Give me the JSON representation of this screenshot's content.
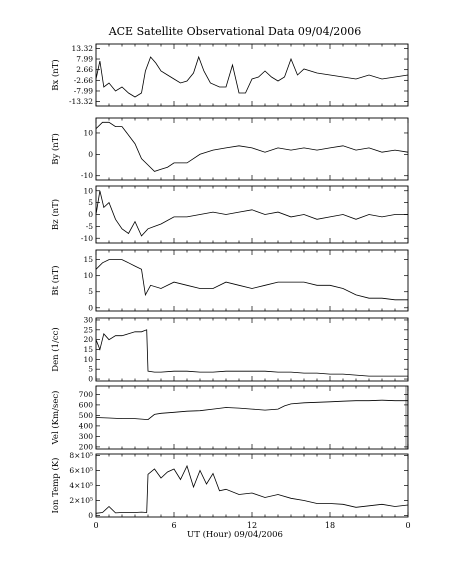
{
  "title": "ACE Satellite Observational Data   09/04/2006",
  "xlabel": "UT (Hour)   09/04/2006",
  "chart_data": {
    "type": "line",
    "title": "ACE Satellite Observational Data   09/04/2006",
    "xlabel": "UT (Hour)   09/04/2006",
    "x_ticks": [
      "0",
      "6",
      "12",
      "18",
      "0"
    ],
    "xlim": [
      0,
      24
    ],
    "panels": [
      {
        "ylabel": "Bx (nT)",
        "ylim": [
          -15.5,
          15.5
        ],
        "yticks": [
          {
            "v": 13.32,
            "t": "13.32"
          },
          {
            "v": 7.99,
            "t": "7.99"
          },
          {
            "v": 2.66,
            "t": "2.66"
          },
          {
            "v": -2.66,
            "t": "-2.66"
          },
          {
            "v": -7.99,
            "t": "-7.99"
          },
          {
            "v": -13.32,
            "t": "-13.32"
          }
        ],
        "shade": [],
        "series": [
          {
            "x": [
              0,
              0.3,
              0.6,
              1.0,
              1.5,
              2.0,
              2.5,
              3.0,
              3.5,
              3.8,
              4.2,
              4.6,
              5.0,
              5.5,
              6.0,
              6.5,
              7.0,
              7.5,
              7.9,
              8.3,
              8.8,
              9.5,
              10.0,
              10.5,
              11.0,
              11.5,
              12.0,
              12.5,
              13.0,
              13.5,
              14.0,
              14.5,
              15.0,
              15.5,
              16.0,
              17.0,
              18.0,
              19.0,
              20.0,
              21.0,
              22.0,
              23.0,
              24.0
            ],
            "y": [
              -2,
              7,
              -6,
              -4,
              -8,
              -6,
              -9,
              -11,
              -9,
              2,
              9,
              6,
              2,
              0,
              -2,
              -4,
              -3,
              1,
              9,
              2,
              -4,
              -6,
              -6,
              5,
              -9,
              -9,
              -2,
              -1,
              2,
              -1,
              -3,
              -1,
              8,
              0,
              3,
              1,
              0,
              -1,
              -2,
              0,
              -2,
              -1,
              0
            ]
          }
        ]
      },
      {
        "ylabel": "By (nT)",
        "ylim": [
          -12,
          17
        ],
        "yticks": [
          {
            "v": 10,
            "t": "10"
          },
          {
            "v": 0,
            "t": "0"
          },
          {
            "v": -10,
            "t": "-10"
          }
        ],
        "shade": [],
        "series": [
          {
            "x": [
              0,
              0.5,
              1.0,
              1.5,
              2.0,
              2.5,
              3.0,
              3.5,
              4.0,
              4.5,
              5.0,
              5.5,
              6.0,
              7.0,
              8.0,
              9.0,
              10.0,
              11.0,
              12.0,
              13.0,
              14.0,
              15.0,
              16.0,
              17.0,
              18.0,
              19.0,
              20.0,
              21.0,
              22.0,
              23.0,
              24.0
            ],
            "y": [
              12,
              15,
              15,
              13,
              13,
              9,
              5,
              -2,
              -5,
              -8,
              -7,
              -6,
              -4,
              -4,
              0,
              2,
              3,
              4,
              3,
              1,
              3,
              2,
              3,
              2,
              3,
              4,
              2,
              3,
              1,
              2,
              1
            ]
          }
        ]
      },
      {
        "ylabel": "Bz (nT)",
        "ylim": [
          -12,
          12
        ],
        "yticks": [
          {
            "v": 10,
            "t": "10"
          },
          {
            "v": 5,
            "t": "5"
          },
          {
            "v": 0,
            "t": "0"
          },
          {
            "v": -5,
            "t": "-5"
          },
          {
            "v": -10,
            "t": "-10"
          }
        ],
        "shade": [],
        "series": [
          {
            "x": [
              0,
              0.3,
              0.6,
              1.0,
              1.5,
              2.0,
              2.5,
              3.0,
              3.5,
              4.0,
              4.5,
              5.0,
              6.0,
              7.0,
              8.0,
              9.0,
              10.0,
              11.0,
              12.0,
              13.0,
              14.0,
              15.0,
              16.0,
              17.0,
              18.0,
              19.0,
              20.0,
              21.0,
              22.0,
              23.0,
              24.0
            ],
            "y": [
              0,
              10,
              3,
              5,
              -2,
              -6,
              -8,
              -3,
              -9,
              -6,
              -5,
              -4,
              -1,
              -1,
              0,
              1,
              0,
              1,
              2,
              0,
              1,
              -1,
              0,
              -2,
              -1,
              0,
              -2,
              0,
              -1,
              0,
              0
            ]
          }
        ]
      },
      {
        "ylabel": "Bt (nT)",
        "ylim": [
          -1,
          18
        ],
        "yticks": [
          {
            "v": 15,
            "t": "15"
          },
          {
            "v": 10,
            "t": "10"
          },
          {
            "v": 5,
            "t": "5"
          },
          {
            "v": 0,
            "t": "0"
          }
        ],
        "shade": [],
        "series": [
          {
            "x": [
              0,
              0.5,
              1.0,
              1.5,
              2.0,
              2.5,
              3.0,
              3.5,
              3.8,
              4.2,
              5.0,
              6.0,
              7.0,
              8.0,
              9.0,
              10.0,
              11.0,
              12.0,
              13.0,
              14.0,
              15.0,
              16.0,
              17.0,
              18.0,
              19.0,
              20.0,
              21.0,
              22.0,
              23.0,
              24.0
            ],
            "y": [
              12,
              14,
              15,
              15,
              15,
              14,
              13,
              12,
              4,
              7,
              6,
              8,
              7,
              6,
              6,
              8,
              7,
              6,
              7,
              8,
              8,
              8,
              7,
              7,
              6,
              4,
              3,
              3,
              2.5,
              2.5
            ]
          }
        ]
      },
      {
        "ylabel": "Den (1/cc)",
        "ylim": [
          -1,
          31
        ],
        "yticks": [
          {
            "v": 30,
            "t": "30"
          },
          {
            "v": 25,
            "t": "25"
          },
          {
            "v": 20,
            "t": "20"
          },
          {
            "v": 15,
            "t": "15"
          },
          {
            "v": 10,
            "t": "10"
          },
          {
            "v": 5,
            "t": "5"
          },
          {
            "v": 0,
            "t": "0"
          }
        ],
        "shade": [],
        "series": [
          {
            "x": [
              0,
              0.3,
              0.6,
              1.0,
              1.5,
              2.0,
              2.5,
              3.0,
              3.5,
              3.9,
              4.0,
              4.5,
              5.0,
              6.0,
              7.0,
              8.0,
              9.0,
              10.0,
              11.0,
              12.0,
              13.0,
              14.0,
              15.0,
              16.0,
              17.0,
              18.0,
              19.0,
              20.0,
              21.0,
              22.0,
              23.0,
              24.0
            ],
            "y": [
              20,
              15,
              23,
              20,
              22,
              22,
              23,
              24,
              24,
              25,
              4,
              3.5,
              3.5,
              4,
              4,
              3.5,
              3.5,
              4,
              4,
              4,
              4,
              3.5,
              3.5,
              3,
              3,
              2.5,
              2.5,
              2,
              1.5,
              1.5,
              1.5,
              1.5
            ]
          }
        ]
      },
      {
        "ylabel": "Vel (Km/sec)",
        "ylim": [
          180,
          780
        ],
        "yticks": [
          {
            "v": 700,
            "t": "700"
          },
          {
            "v": 600,
            "t": "600"
          },
          {
            "v": 500,
            "t": "500"
          },
          {
            "v": 400,
            "t": "400"
          },
          {
            "v": 300,
            "t": "300"
          },
          {
            "v": 200,
            "t": "200"
          }
        ],
        "shade": [
          0,
          24
        ],
        "series": [
          {
            "x": [
              0,
              1.0,
              2.0,
              3.0,
              4.0,
              4.5,
              5.0,
              6.0,
              7.0,
              8.0,
              9.0,
              10.0,
              11.0,
              12.0,
              13.0,
              14.0,
              14.5,
              15.0,
              16.0,
              17.0,
              18.0,
              19.0,
              20.0,
              21.0,
              22.0,
              23.0,
              24.0
            ],
            "y": [
              480,
              475,
              470,
              470,
              460,
              510,
              520,
              530,
              540,
              545,
              560,
              575,
              570,
              560,
              550,
              560,
              590,
              610,
              620,
              625,
              630,
              635,
              640,
              640,
              645,
              640,
              640
            ]
          }
        ]
      },
      {
        "ylabel": "Ion Temp (K)",
        "ylim": [
          -20000,
          820000
        ],
        "yticks": [
          {
            "v": 800000,
            "t": "8×10⁵"
          },
          {
            "v": 600000,
            "t": "6×10⁵"
          },
          {
            "v": 400000,
            "t": "4×10⁵"
          },
          {
            "v": 200000,
            "t": "2×10⁵"
          },
          {
            "v": 0,
            "t": "0"
          }
        ],
        "shade": [],
        "series": [
          {
            "x": [
              0,
              0.5,
              1.0,
              1.5,
              2.0,
              2.5,
              3.0,
              3.5,
              3.9,
              4.0,
              4.5,
              5.0,
              5.5,
              6.0,
              6.5,
              7.0,
              7.5,
              8.0,
              8.5,
              9.0,
              9.5,
              10.0,
              11.0,
              12.0,
              13.0,
              14.0,
              15.0,
              16.0,
              17.0,
              18.0,
              19.0,
              20.0,
              21.0,
              22.0,
              23.0,
              24.0
            ],
            "y": [
              30000,
              40000,
              120000,
              35000,
              40000,
              40000,
              40000,
              45000,
              40000,
              550000,
              620000,
              500000,
              580000,
              620000,
              480000,
              660000,
              380000,
              600000,
              420000,
              560000,
              330000,
              350000,
              280000,
              300000,
              240000,
              280000,
              230000,
              200000,
              160000,
              160000,
              150000,
              110000,
              130000,
              150000,
              120000,
              140000
            ]
          }
        ]
      }
    ]
  }
}
